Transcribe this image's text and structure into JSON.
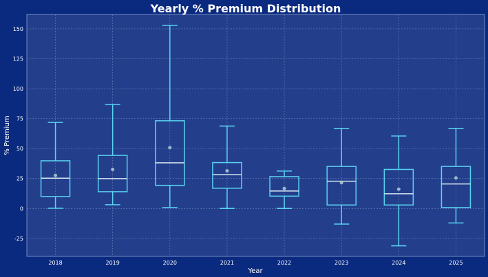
{
  "chart_data": {
    "type": "box",
    "title": "Yearly % Premium Distribution",
    "xlabel": "Year",
    "ylabel": "% Premium",
    "ylim": [
      -40,
      162
    ],
    "yticks": [
      -25,
      0,
      25,
      50,
      75,
      100,
      125,
      150
    ],
    "grid": true,
    "categories": [
      "2018",
      "2019",
      "2020",
      "2021",
      "2022",
      "2023",
      "2024",
      "2025"
    ],
    "boxes": [
      {
        "whisker_low": 0.2,
        "q1": 10.0,
        "median": 25.3,
        "q3": 39.8,
        "whisker_high": 71.8,
        "mean": 27.6
      },
      {
        "whisker_low": 3.1,
        "q1": 14.0,
        "median": 24.9,
        "q3": 44.3,
        "whisker_high": 86.8,
        "mean": 32.6
      },
      {
        "whisker_low": 0.8,
        "q1": 19.3,
        "median": 38.1,
        "q3": 73.2,
        "whisker_high": 152.9,
        "mean": 50.8
      },
      {
        "whisker_low": 0.0,
        "q1": 16.9,
        "median": 28.2,
        "q3": 38.3,
        "whisker_high": 68.8,
        "mean": 31.4
      },
      {
        "whisker_low": 0.0,
        "q1": 10.3,
        "median": 14.6,
        "q3": 26.6,
        "whisker_high": 31.2,
        "mean": 16.7
      },
      {
        "whisker_low": -13.0,
        "q1": 2.9,
        "median": 22.8,
        "q3": 35.1,
        "whisker_high": 66.9,
        "mean": 21.5
      },
      {
        "whisker_low": -31.2,
        "q1": 2.9,
        "median": 12.3,
        "q3": 32.6,
        "whisker_high": 60.5,
        "mean": 16.1
      },
      {
        "whisker_low": -12.1,
        "q1": 0.8,
        "median": 20.5,
        "q3": 35.1,
        "whisker_high": 66.9,
        "mean": 25.5
      }
    ],
    "colors": {
      "background": "#0a2a80",
      "plot_background": "#233f8c",
      "box": "#5ad2f0",
      "median": "#d8e8f0",
      "mean": "#9fb8c8",
      "grid": "#6a80b8"
    }
  }
}
